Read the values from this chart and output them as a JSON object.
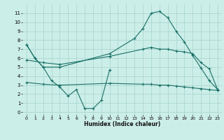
{
  "xlabel": "Humidex (Indice chaleur)",
  "bg_color": "#cceee8",
  "grid_color": "#aad8d0",
  "line_color": "#1a7068",
  "xlim": [
    -0.5,
    23.5
  ],
  "ylim": [
    -0.3,
    12.0
  ],
  "xticks": [
    0,
    1,
    2,
    3,
    4,
    5,
    6,
    7,
    8,
    9,
    10,
    11,
    12,
    13,
    14,
    15,
    16,
    17,
    18,
    19,
    20,
    21,
    22,
    23
  ],
  "yticks": [
    0,
    1,
    2,
    3,
    4,
    5,
    6,
    7,
    8,
    9,
    10,
    11
  ],
  "line1_x": [
    0,
    1,
    2,
    3,
    4,
    5,
    6,
    7,
    8,
    9,
    10
  ],
  "line1_y": [
    7.5,
    6.0,
    5.0,
    3.5,
    2.8,
    1.8,
    2.5,
    0.4,
    0.4,
    1.3,
    4.7
  ],
  "line2_x": [
    0,
    1,
    2,
    4,
    10,
    13,
    14,
    15,
    16,
    17,
    18,
    19,
    20,
    21,
    22,
    23
  ],
  "line2_y": [
    7.5,
    6.0,
    5.0,
    5.0,
    6.5,
    8.2,
    9.3,
    11.0,
    11.2,
    10.5,
    9.0,
    7.8,
    6.3,
    4.9,
    3.5,
    2.5
  ],
  "line3_x": [
    0,
    2,
    4,
    10,
    14,
    15,
    16,
    17,
    18,
    19,
    20,
    21,
    22,
    23
  ],
  "line3_y": [
    5.8,
    5.5,
    5.3,
    6.2,
    7.0,
    7.2,
    7.0,
    7.0,
    6.8,
    6.7,
    6.5,
    5.5,
    4.8,
    2.5
  ],
  "line4_x": [
    0,
    2,
    4,
    10,
    14,
    15,
    16,
    17,
    18,
    19,
    20,
    21,
    22,
    23
  ],
  "line4_y": [
    3.3,
    3.1,
    3.0,
    3.2,
    3.1,
    3.1,
    3.0,
    3.0,
    2.9,
    2.8,
    2.7,
    2.6,
    2.5,
    2.4
  ]
}
